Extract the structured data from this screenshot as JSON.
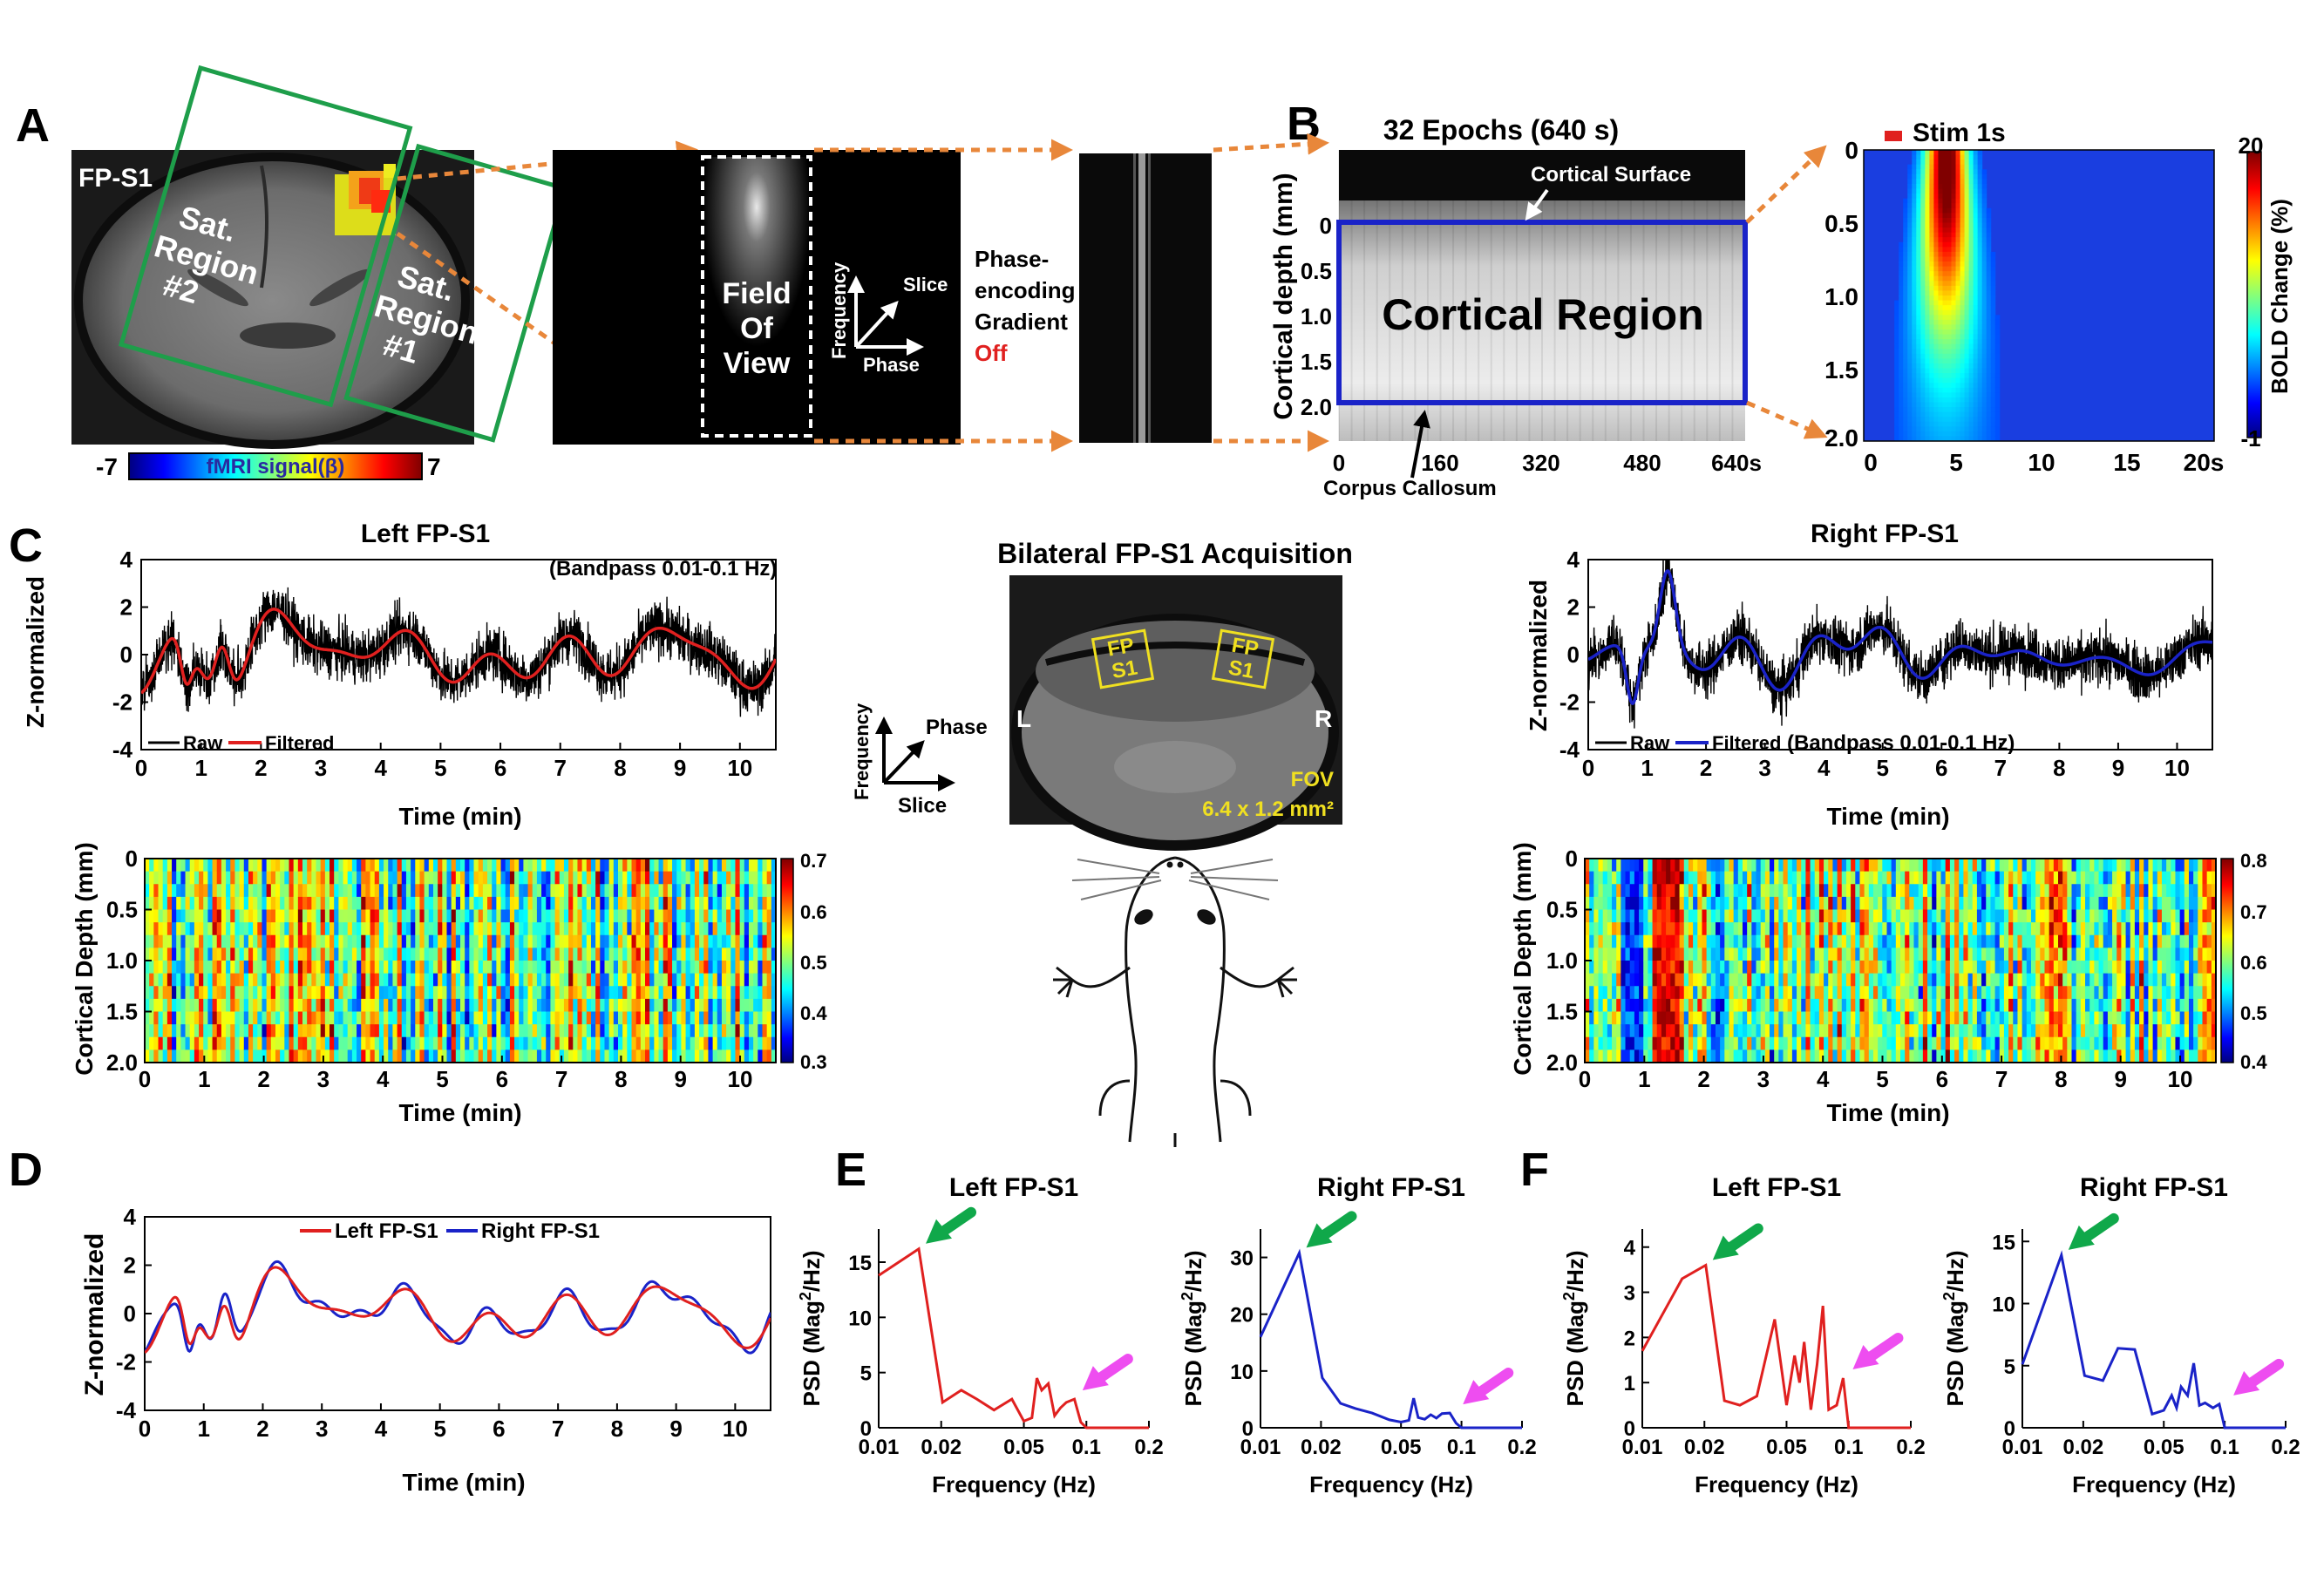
{
  "panels": {
    "A": "A",
    "B": "B",
    "C": "C",
    "D": "D",
    "E": "E",
    "F": "F"
  },
  "panel_a": {
    "region_label": "FP-S1",
    "sat2": [
      "Sat.",
      "Region",
      "#2"
    ],
    "sat1": [
      "Sat.",
      "Region",
      "#1"
    ],
    "colorbar_label": "fMRI signal(β)",
    "colorbar_min": "-7",
    "colorbar_max": "7",
    "fov": [
      "Field",
      "Of",
      "View"
    ],
    "axis_frequency": "Frequency",
    "axis_slice": "Slice",
    "axis_phase": "Phase",
    "pe_lines": [
      "Phase-",
      "encoding",
      "Gradient"
    ],
    "pe_state": "Off",
    "pe_state_color": "#e0201f"
  },
  "panel_b": {
    "epochs_title": "32 Epochs (640 s)",
    "ylabel": "Cortical depth (mm)",
    "yticks": [
      "0",
      "0.5",
      "1.0",
      "1.5",
      "2.0"
    ],
    "xticks": [
      "0",
      "160",
      "320",
      "480",
      "640s"
    ],
    "cortical_surface": "Cortical Surface",
    "cortical_region": "Cortical Region",
    "corpus_callosum": "Corpus Callosum",
    "stim_label": "Stim 1s",
    "heat_yticks": [
      "0",
      "0.5",
      "1.0",
      "1.5",
      "2.0"
    ],
    "heat_xticks": [
      "0",
      "5",
      "10",
      "15",
      "20s"
    ],
    "cbar_label": "BOLD Change (%)",
    "cbar_max": "20",
    "cbar_min": "-1"
  },
  "panel_c": {
    "left_title": "Left FP-S1",
    "right_title": "Right FP-S1",
    "bandpass": "(Bandpass 0.01-0.1 Hz)",
    "ylabel": "Z-normalized",
    "xlabel": "Time (min)",
    "legend_raw": "Raw",
    "legend_filtered": "Filtered",
    "depth_ylabel": "Cortical Depth (mm)",
    "left_cbar": [
      "0.7",
      "0.6",
      "0.5",
      "0.4",
      "0.3"
    ],
    "right_cbar": [
      "0.8",
      "0.7",
      "0.6",
      "0.5",
      "0.4"
    ],
    "bilateral_title": "Bilateral FP-S1 Acquisition",
    "fp_box": [
      "FP",
      "S1"
    ],
    "mri_left": "L",
    "mri_right": "R",
    "fov_label": "FOV",
    "fov_value": "6.4 x 1.2 mm²",
    "axis_frequency": "Frequency",
    "axis_phase": "Phase",
    "axis_slice": "Slice"
  },
  "panel_d": {
    "ylabel": "Z-normalized",
    "xlabel": "Time (min)",
    "legend_left": "Left FP-S1",
    "legend_right": "Right FP-S1"
  },
  "colors": {
    "red": "#e0201f",
    "blue": "#1a23c8",
    "green_arrow": "#10a84a",
    "magenta_arrow": "#ee4df0",
    "orange": "#e8873a",
    "sat_green": "#1e9e4a"
  },
  "chart_data": [
    {
      "id": "C-left-timecourse",
      "type": "line",
      "title": "Left FP-S1",
      "xlabel": "Time (min)",
      "ylabel": "Z-normalized",
      "xlim": [
        0,
        10.6
      ],
      "ylim": [
        -4,
        4
      ],
      "xticks": [
        0,
        1,
        2,
        3,
        4,
        5,
        6,
        7,
        8,
        9,
        10
      ],
      "yticks": [
        -4,
        -2,
        0,
        2,
        4
      ],
      "series": [
        {
          "name": "Raw",
          "color": "#000000"
        },
        {
          "name": "Filtered",
          "color": "#e0201f"
        }
      ]
    },
    {
      "id": "C-right-timecourse",
      "type": "line",
      "title": "Right FP-S1",
      "xlabel": "Time (min)",
      "ylabel": "Z-normalized",
      "xlim": [
        0,
        10.6
      ],
      "ylim": [
        -4,
        4
      ],
      "xticks": [
        0,
        1,
        2,
        3,
        4,
        5,
        6,
        7,
        8,
        9,
        10
      ],
      "yticks": [
        -4,
        -2,
        0,
        2,
        4
      ],
      "series": [
        {
          "name": "Raw",
          "color": "#000000"
        },
        {
          "name": "Filtered",
          "color": "#1a23c8"
        }
      ]
    },
    {
      "id": "C-left-heatmap",
      "type": "heatmap",
      "xlabel": "Time (min)",
      "ylabel": "Cortical Depth (mm)",
      "xlim": [
        0,
        10.6
      ],
      "ylim": [
        0,
        2.0
      ],
      "xticks": [
        0,
        1,
        2,
        3,
        4,
        5,
        6,
        7,
        8,
        9,
        10
      ],
      "yticks": [
        "0",
        "0.5",
        "1.0",
        "1.5",
        "2.0"
      ],
      "color_range": [
        0.3,
        0.7
      ]
    },
    {
      "id": "C-right-heatmap",
      "type": "heatmap",
      "xlabel": "Time (min)",
      "ylabel": "Cortical Depth (mm)",
      "xlim": [
        0,
        10.6
      ],
      "ylim": [
        0,
        2.0
      ],
      "xticks": [
        0,
        1,
        2,
        3,
        4,
        5,
        6,
        7,
        8,
        9,
        10
      ],
      "yticks": [
        "0",
        "0.5",
        "1.0",
        "1.5",
        "2.0"
      ],
      "color_range": [
        0.4,
        0.8
      ]
    },
    {
      "id": "D-overlay",
      "type": "line",
      "xlabel": "Time (min)",
      "ylabel": "Z-normalized",
      "xlim": [
        0,
        10.6
      ],
      "ylim": [
        -4,
        4
      ],
      "xticks": [
        0,
        1,
        2,
        3,
        4,
        5,
        6,
        7,
        8,
        9,
        10
      ],
      "yticks": [
        -4,
        -2,
        0,
        2,
        4
      ],
      "series": [
        {
          "name": "Left FP-S1",
          "color": "#e0201f"
        },
        {
          "name": "Right FP-S1",
          "color": "#1a23c8"
        }
      ]
    },
    {
      "id": "E-left",
      "type": "line",
      "title": "Left FP-S1",
      "xlabel": "Frequency (Hz)",
      "ylabel": "PSD (Mag²/Hz)",
      "x_scale": "log",
      "xlim": [
        0.01,
        0.2
      ],
      "ylim": [
        0,
        18
      ],
      "xticks": [
        "0.01",
        "0.02",
        "0.05",
        "0.1",
        "0.2"
      ],
      "yticks": [
        0,
        5,
        10,
        15
      ],
      "series": [
        {
          "color": "#e0201f",
          "x": [
            0.01,
            0.0156,
            0.0203,
            0.025,
            0.0297,
            0.0359,
            0.0438,
            0.05,
            0.0547,
            0.0578,
            0.0609,
            0.0656,
            0.0703,
            0.075,
            0.08,
            0.0875,
            0.094,
            0.1,
            0.2
          ],
          "y": [
            13.8,
            16.2,
            2.3,
            3.4,
            2.6,
            1.6,
            2.6,
            0.6,
            0.9,
            4.5,
            3.4,
            4.0,
            1.1,
            1.8,
            2.3,
            2.6,
            0.5,
            0.0,
            0.0
          ]
        }
      ]
    },
    {
      "id": "E-right",
      "type": "line",
      "title": "Right FP-S1",
      "xlabel": "Frequency (Hz)",
      "ylabel": "PSD (Mag²/Hz)",
      "x_scale": "log",
      "xlim": [
        0.01,
        0.2
      ],
      "ylim": [
        0,
        35
      ],
      "xticks": [
        "0.01",
        "0.02",
        "0.05",
        "0.1",
        "0.2"
      ],
      "yticks": [
        0,
        10,
        20,
        30
      ],
      "series": [
        {
          "color": "#1a23c8",
          "x": [
            0.01,
            0.0156,
            0.0203,
            0.025,
            0.0297,
            0.0359,
            0.0438,
            0.05,
            0.0547,
            0.0578,
            0.0609,
            0.0656,
            0.0703,
            0.075,
            0.08,
            0.0875,
            0.094,
            0.1,
            0.2
          ],
          "y": [
            16.0,
            30.8,
            8.8,
            4.3,
            3.4,
            2.6,
            1.4,
            1.0,
            1.3,
            5.2,
            1.8,
            1.5,
            2.3,
            1.7,
            2.5,
            2.6,
            0.8,
            0.0,
            0.0
          ]
        }
      ]
    },
    {
      "id": "F-left",
      "type": "line",
      "title": "Left FP-S1",
      "xlabel": "Frequency (Hz)",
      "ylabel": "PSD (Mag²/Hz)",
      "x_scale": "log",
      "xlim": [
        0.01,
        0.2
      ],
      "ylim": [
        0,
        4.4
      ],
      "xticks": [
        "0.01",
        "0.02",
        "0.05",
        "0.1",
        "0.2"
      ],
      "yticks": [
        0,
        1,
        2,
        3,
        4
      ],
      "series": [
        {
          "color": "#e0201f",
          "x": [
            0.01,
            0.0156,
            0.0203,
            0.025,
            0.0297,
            0.0359,
            0.0438,
            0.05,
            0.0547,
            0.0578,
            0.0609,
            0.0656,
            0.0703,
            0.075,
            0.08,
            0.0875,
            0.094,
            0.1,
            0.2
          ],
          "y": [
            1.7,
            3.3,
            3.6,
            0.6,
            0.5,
            0.7,
            2.4,
            0.5,
            1.6,
            1.0,
            1.9,
            0.4,
            1.4,
            2.7,
            0.4,
            0.5,
            1.1,
            0.0,
            0.0
          ]
        }
      ]
    },
    {
      "id": "F-right",
      "type": "line",
      "title": "Right FP-S1",
      "xlabel": "Frequency (Hz)",
      "ylabel": "PSD (Mag²/Hz)",
      "x_scale": "log",
      "xlim": [
        0.01,
        0.2
      ],
      "ylim": [
        0,
        16
      ],
      "xticks": [
        "0.01",
        "0.02",
        "0.05",
        "0.1",
        "0.2"
      ],
      "yticks": [
        0,
        5,
        10,
        15
      ],
      "series": [
        {
          "color": "#1a23c8",
          "x": [
            0.01,
            0.0156,
            0.0203,
            0.025,
            0.0297,
            0.0359,
            0.0438,
            0.05,
            0.0547,
            0.0578,
            0.0609,
            0.0656,
            0.0703,
            0.075,
            0.08,
            0.0875,
            0.094,
            0.1,
            0.2
          ],
          "y": [
            5.1,
            13.9,
            4.2,
            3.8,
            6.4,
            6.3,
            1.1,
            1.4,
            2.6,
            1.6,
            3.3,
            2.6,
            5.2,
            1.8,
            2.0,
            1.6,
            1.9,
            0.0,
            0.0
          ]
        }
      ]
    }
  ]
}
